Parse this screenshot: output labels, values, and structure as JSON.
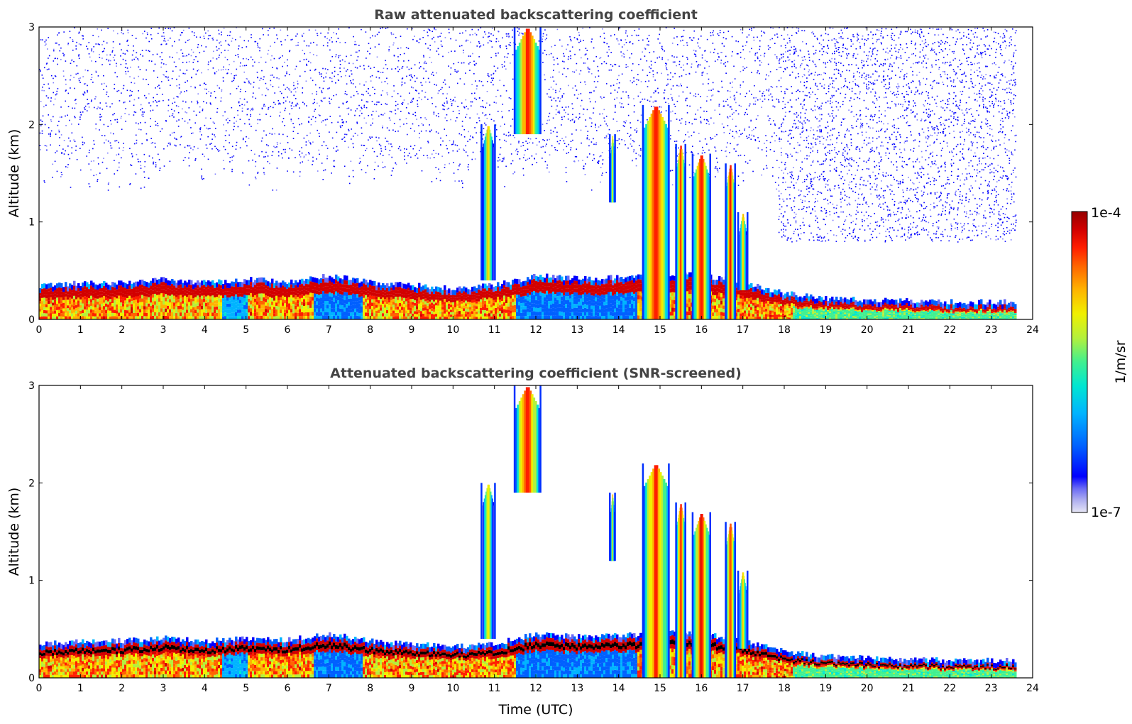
{
  "chart_data": [
    {
      "type": "heatmap",
      "title": "Raw attenuated backscattering coefficient",
      "xlabel": "",
      "ylabel": "Altitude (km)",
      "xlim": [
        0,
        24
      ],
      "ylim": [
        0,
        3
      ],
      "x_ticks": [
        "0",
        "1",
        "2",
        "3",
        "4",
        "5",
        "6",
        "7",
        "8",
        "9",
        "10",
        "11",
        "12",
        "13",
        "14",
        "15",
        "16",
        "17",
        "18",
        "19",
        "20",
        "21",
        "22",
        "23",
        "24"
      ],
      "y_ticks": [
        "0",
        "1",
        "2",
        "3"
      ],
      "data_end_time": 23.65,
      "boundary_layer_top_km": [
        [
          0,
          0.3
        ],
        [
          1,
          0.32
        ],
        [
          2,
          0.33
        ],
        [
          3,
          0.36
        ],
        [
          4,
          0.33
        ],
        [
          5,
          0.36
        ],
        [
          6,
          0.34
        ],
        [
          7,
          0.4
        ],
        [
          8,
          0.33
        ],
        [
          9,
          0.3
        ],
        [
          10,
          0.27
        ],
        [
          11,
          0.3
        ],
        [
          12,
          0.4
        ],
        [
          13,
          0.37
        ],
        [
          14,
          0.38
        ],
        [
          15,
          0.42
        ],
        [
          16,
          0.4
        ],
        [
          17,
          0.33
        ],
        [
          18,
          0.22
        ],
        [
          19,
          0.17
        ],
        [
          20,
          0.15
        ],
        [
          21,
          0.14
        ],
        [
          22,
          0.13
        ],
        [
          23,
          0.13
        ]
      ],
      "cloud_features": [
        {
          "start": 11.5,
          "end": 12.1,
          "bottom_km": 1.9,
          "top_km": 3.0,
          "level": "high"
        },
        {
          "start": 10.7,
          "end": 11.0,
          "bottom_km": 0.4,
          "top_km": 2.0,
          "level": "medium"
        },
        {
          "start": 14.6,
          "end": 15.2,
          "bottom_km": 0.0,
          "top_km": 2.2,
          "level": "high"
        },
        {
          "start": 15.4,
          "end": 15.6,
          "bottom_km": 0.0,
          "top_km": 1.8,
          "level": "high"
        },
        {
          "start": 15.8,
          "end": 16.2,
          "bottom_km": 0.0,
          "top_km": 1.7,
          "level": "high"
        },
        {
          "start": 16.6,
          "end": 16.8,
          "bottom_km": 0.0,
          "top_km": 1.6,
          "level": "high"
        },
        {
          "start": 16.9,
          "end": 17.1,
          "bottom_km": 0.3,
          "top_km": 1.1,
          "level": "medium"
        },
        {
          "start": 13.8,
          "end": 13.9,
          "bottom_km": 1.2,
          "top_km": 1.9,
          "level": "medium"
        }
      ],
      "noise_region": "upper altitudes and after 17.8 UTC"
    },
    {
      "type": "heatmap",
      "title": "Attenuated backscattering coefficient (SNR-screened)",
      "xlabel": "Time (UTC)",
      "ylabel": "Altitude (km)",
      "xlim": [
        0,
        24
      ],
      "ylim": [
        0,
        3
      ],
      "x_ticks": [
        "0",
        "1",
        "2",
        "3",
        "4",
        "5",
        "6",
        "7",
        "8",
        "9",
        "10",
        "11",
        "12",
        "13",
        "14",
        "15",
        "16",
        "17",
        "18",
        "19",
        "20",
        "21",
        "22",
        "23",
        "24"
      ],
      "y_ticks": [
        "0",
        "1",
        "2",
        "3"
      ],
      "data_end_time": 23.65,
      "screening": "SNR-screened; noise removed above boundary layer"
    }
  ],
  "colorbar": {
    "label": "1/m/sr",
    "max_label": "1e-4",
    "min_label": "1e-7",
    "colormap": [
      "#e6e6f5",
      "#b0b0f0",
      "#6a6af5",
      "#0000ff",
      "#0060ff",
      "#00b4ff",
      "#00e6d2",
      "#40f090",
      "#b4f03c",
      "#f0f000",
      "#ffb400",
      "#ff6400",
      "#ff1e00",
      "#d20000",
      "#960000"
    ]
  }
}
